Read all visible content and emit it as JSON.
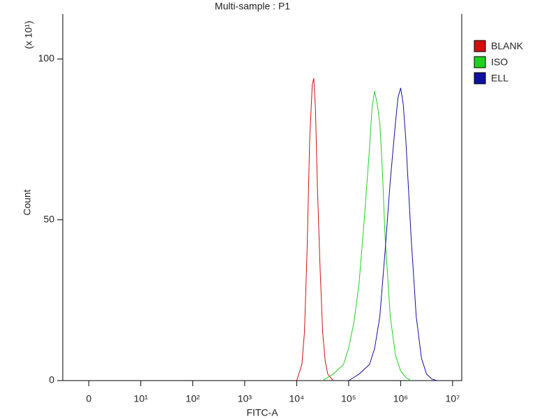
{
  "chart_data": {
    "type": "line",
    "title": "Multi-sample : P1",
    "x_label": "FITC-A",
    "y_label": "Count",
    "y_multiplier": "(x 10¹)",
    "xscale": "biexponential",
    "xlim": [
      -5,
      15000000
    ],
    "xticks": [
      0,
      {
        "value": 10,
        "label": "10¹"
      },
      {
        "value": 100,
        "label": "10²"
      },
      {
        "value": 1000,
        "label": "10³"
      },
      {
        "value": 10000,
        "label": "10⁴"
      },
      {
        "value": 100000,
        "label": "10⁵"
      },
      {
        "value": 1000000,
        "label": "10⁶"
      },
      {
        "value": 10000000,
        "label": "10⁷"
      }
    ],
    "ylim": [
      0,
      114
    ],
    "yticks": [
      0,
      50,
      100
    ],
    "legend": "right",
    "series": [
      {
        "name": "BLANK",
        "color": "#d01010",
        "x": [
          10000,
          12589,
          14125,
          15849,
          17783,
          19953,
          21380,
          22909,
          25119,
          28184,
          31623,
          35481,
          39811,
          50119
        ],
        "values": [
          0,
          5,
          15,
          40,
          75,
          92,
          94,
          85,
          60,
          35,
          15,
          6,
          2,
          0
        ]
      },
      {
        "name": "ISO",
        "color": "#20d020",
        "x": [
          31623,
          50119,
          79433,
          100000,
          125893,
          158489,
          199526,
          251189,
          281838,
          316228,
          354813,
          398107,
          446684,
          501187,
          630957,
          794328,
          1000000,
          1258925,
          1584893
        ],
        "values": [
          0,
          2,
          5,
          10,
          18,
          30,
          50,
          72,
          85,
          90,
          86,
          80,
          65,
          45,
          20,
          8,
          3,
          1,
          0
        ]
      },
      {
        "name": "ELL",
        "color": "#1010a0",
        "x": [
          100000,
          158489,
          251189,
          316228,
          398107,
          501187,
          630957,
          794328,
          891251,
          1000000,
          1122018,
          1258925,
          1584893,
          1995262,
          2511886,
          3162278,
          3981072,
          5011872
        ],
        "values": [
          0,
          2,
          5,
          10,
          20,
          40,
          62,
          80,
          88,
          91,
          86,
          75,
          45,
          20,
          7,
          2,
          0.5,
          0
        ]
      }
    ]
  }
}
